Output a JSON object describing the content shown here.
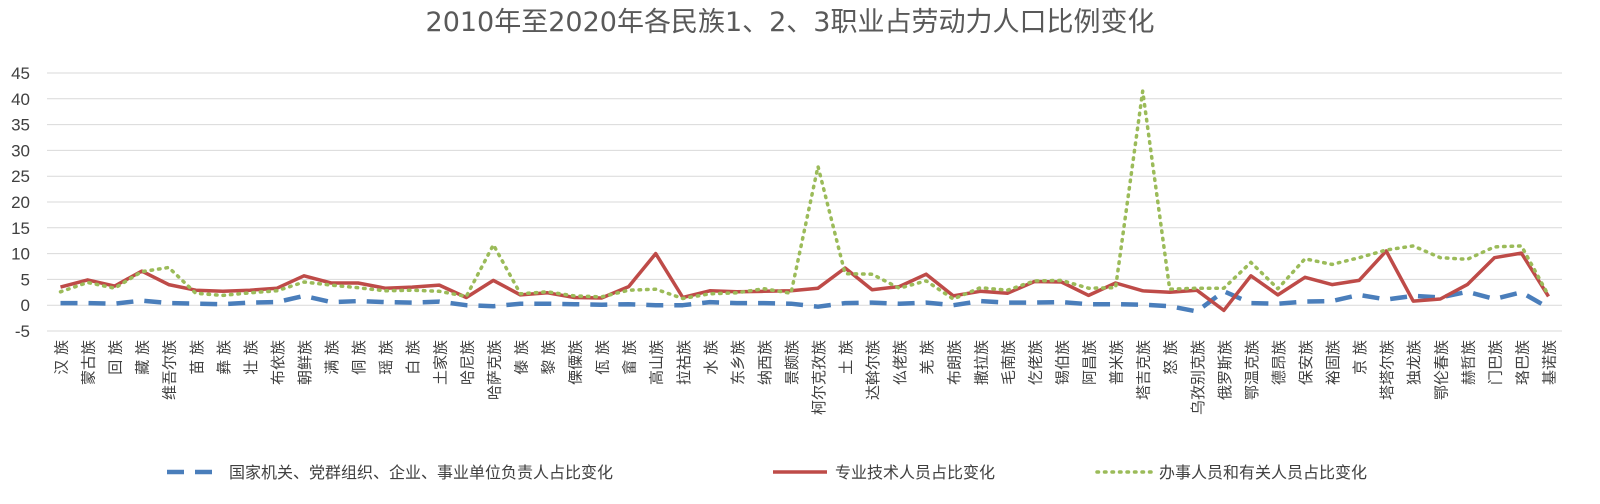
{
  "chart_data": {
    "type": "line",
    "title": "2010年至2020年各民族1、2、3职业占劳动力人口比例变化",
    "xlabel": "",
    "ylabel": "",
    "ylim": [
      -5,
      45
    ],
    "yticks": [
      -5,
      0,
      5,
      10,
      15,
      20,
      25,
      30,
      35,
      40,
      45
    ],
    "grid": "horizontal",
    "legend_position": "bottom",
    "categories": [
      "汉 族",
      "蒙古族",
      "回 族",
      "藏 族",
      "维吾尔族",
      "苗 族",
      "彝 族",
      "壮 族",
      "布依族",
      "朝鲜族",
      "满 族",
      "侗 族",
      "瑶 族",
      "白 族",
      "土家族",
      "哈尼族",
      "哈萨克族",
      "傣 族",
      "黎 族",
      "傈僳族",
      "佤 族",
      "畲 族",
      "高山族",
      "拉祜族",
      "水 族",
      "东乡族",
      "纳西族",
      "景颇族",
      "柯尔克孜族",
      "土 族",
      "达斡尔族",
      "仫佬族",
      "羌 族",
      "布朗族",
      "撒拉族",
      "毛南族",
      "仡佬族",
      "锡伯族",
      "阿昌族",
      "普米族",
      "塔吉克族",
      "怒 族",
      "乌孜别克族",
      "俄罗斯族",
      "鄂温克族",
      "德昂族",
      "保安族",
      "裕固族",
      "京 族",
      "塔塔尔族",
      "独龙族",
      "鄂伦春族",
      "赫哲族",
      "门巴族",
      "珞巴族",
      "基诺族"
    ],
    "series": [
      {
        "name": "国家机关、党群组织、企业、事业单位负责人占比变化",
        "color": "#4a7ebb",
        "style": "dashed",
        "values": [
          0.4,
          0.4,
          0.3,
          0.9,
          0.4,
          0.3,
          0.2,
          0.5,
          0.6,
          1.8,
          0.6,
          0.8,
          0.6,
          0.5,
          0.7,
          0.0,
          -0.2,
          0.3,
          0.3,
          0.2,
          0.1,
          0.2,
          0.0,
          0.0,
          0.6,
          0.4,
          0.4,
          0.3,
          -0.3,
          0.4,
          0.5,
          0.3,
          0.5,
          0.0,
          0.8,
          0.5,
          0.5,
          0.6,
          0.2,
          0.2,
          0.1,
          -0.2,
          -1.2,
          2.7,
          0.4,
          0.3,
          0.7,
          0.8,
          2.0,
          1.1,
          1.8,
          1.5,
          2.6,
          1.2,
          2.5,
          -0.5
        ]
      },
      {
        "name": "专业技术人员占比变化",
        "color": "#be4b48",
        "style": "solid",
        "values": [
          3.5,
          4.9,
          3.7,
          6.6,
          4.0,
          2.9,
          2.7,
          2.9,
          3.3,
          5.7,
          4.3,
          4.3,
          3.3,
          3.5,
          3.9,
          1.5,
          4.8,
          2.0,
          2.4,
          1.5,
          1.4,
          3.6,
          10.0,
          1.5,
          2.8,
          2.6,
          2.7,
          2.8,
          3.3,
          7.2,
          3.0,
          3.6,
          6.0,
          1.8,
          2.7,
          2.3,
          4.6,
          4.5,
          1.9,
          4.3,
          2.8,
          2.5,
          2.9,
          -1.0,
          5.7,
          2.0,
          5.4,
          4.0,
          4.8,
          10.5,
          0.8,
          1.2,
          4.0,
          9.2,
          10.1,
          1.7
        ]
      },
      {
        "name": "办事人员和有关人员占比变化",
        "color": "#9bbb59",
        "style": "dotted",
        "values": [
          2.6,
          4.4,
          3.3,
          6.5,
          7.3,
          2.3,
          1.9,
          2.4,
          2.8,
          4.5,
          3.9,
          3.4,
          2.8,
          2.9,
          2.7,
          1.7,
          11.7,
          2.2,
          2.6,
          1.8,
          1.6,
          2.9,
          3.1,
          1.3,
          2.2,
          2.4,
          3.2,
          2.3,
          26.9,
          6.1,
          6.0,
          3.3,
          4.7,
          1.2,
          3.4,
          2.9,
          4.7,
          4.8,
          3.3,
          3.4,
          41.5,
          3.1,
          3.3,
          3.3,
          8.3,
          3.2,
          9.0,
          7.9,
          9.2,
          10.7,
          11.5,
          9.2,
          8.9,
          11.3,
          11.5,
          1.9
        ]
      }
    ]
  }
}
